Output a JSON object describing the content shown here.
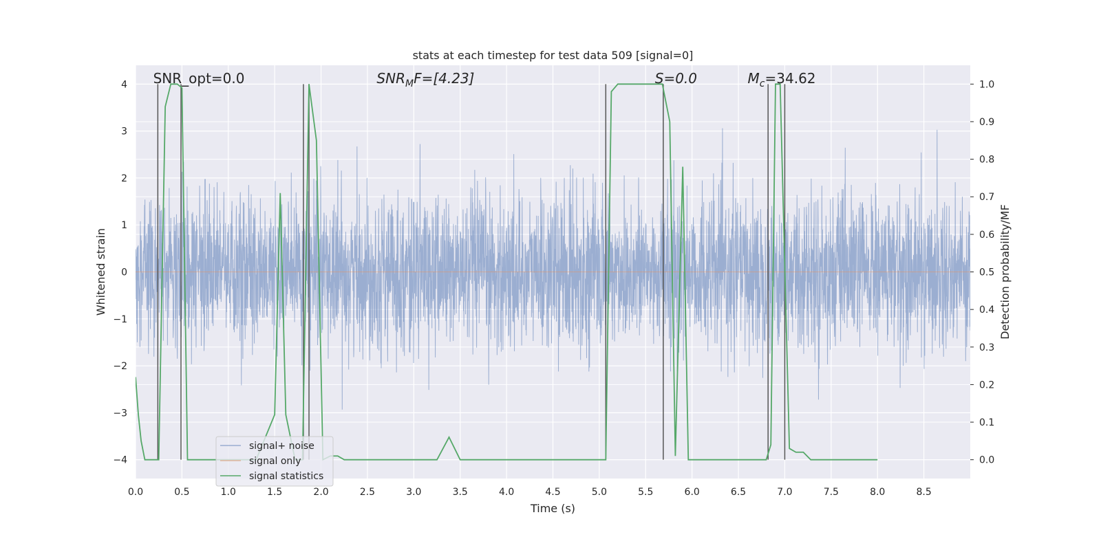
{
  "chart_data": {
    "type": "line",
    "title": "stats at each timestep for test data 509 [signal=0]",
    "xlabel": "Time (s)",
    "ylabel_left": "Whitened strain",
    "ylabel_right": "Detection probability/MF",
    "xlim": [
      0.0,
      9.0
    ],
    "ylim_left": [
      -4.4,
      4.4
    ],
    "ylim_right": [
      -0.05,
      1.05
    ],
    "grid": true,
    "x_ticks": [
      0.0,
      0.5,
      1.0,
      1.5,
      2.0,
      2.5,
      3.0,
      3.5,
      4.0,
      4.5,
      5.0,
      5.5,
      6.0,
      6.5,
      7.0,
      7.5,
      8.0,
      8.5
    ],
    "x_tick_labels": [
      "0.0",
      "0.5",
      "1.0",
      "1.5",
      "2.0",
      "2.5",
      "3.0",
      "3.5",
      "4.0",
      "4.5",
      "5.0",
      "5.5",
      "6.0",
      "6.5",
      "7.0",
      "7.5",
      "8.0",
      "8.5"
    ],
    "y_left_ticks": [
      -4,
      -3,
      -2,
      -1,
      0,
      1,
      2,
      3,
      4
    ],
    "y_left_tick_labels": [
      "−4",
      "−3",
      "−2",
      "−1",
      "0",
      "1",
      "2",
      "3",
      "4"
    ],
    "y_right_ticks": [
      0.0,
      0.1,
      0.2,
      0.3,
      0.4,
      0.5,
      0.6,
      0.7,
      0.8,
      0.9,
      1.0
    ],
    "y_right_tick_labels": [
      "0.0",
      "0.1",
      "0.2",
      "0.3",
      "0.4",
      "0.5",
      "0.6",
      "0.7",
      "0.8",
      "0.9",
      "1.0"
    ],
    "annotations": {
      "snr_opt": "SNR_opt=0.0",
      "snr_mf_base": "SNR",
      "snr_mf_sub": "M",
      "snr_mf_rest": "F=[4.23]",
      "s_label": "S=0.0",
      "mc_base": "M",
      "mc_sub": "c",
      "mc_rest": "=34.62"
    },
    "legend": {
      "location": "lower-left",
      "entries": [
        "signal+ noise",
        "signal only",
        "signal statistics"
      ]
    },
    "vertical_lines_x": [
      0.24,
      0.49,
      1.81,
      1.87,
      5.07,
      5.69,
      6.82,
      7.0
    ],
    "strain_noise": {
      "name": "signal+ noise",
      "color": "#4c72b0",
      "approx_std": 0.8,
      "approx_peak_abs": 3.1,
      "x_range": [
        0.0,
        9.0
      ]
    },
    "signal_only": {
      "name": "signal only",
      "color": "#dd8452",
      "values_constant": 0.0
    },
    "signal_statistics": {
      "name": "signal statistics",
      "color": "#55a868",
      "x": [
        0.0,
        0.03,
        0.06,
        0.1,
        0.24,
        0.25,
        0.32,
        0.38,
        0.45,
        0.5,
        0.56,
        1.3,
        1.5,
        1.56,
        1.62,
        1.72,
        1.8,
        1.87,
        1.95,
        2.02,
        2.1,
        2.18,
        2.25,
        2.5,
        3.25,
        3.38,
        3.5,
        4.0,
        4.05,
        5.07,
        5.13,
        5.2,
        5.68,
        5.76,
        5.82,
        5.9,
        5.96,
        6.02,
        6.3,
        6.8,
        6.85,
        6.9,
        6.95,
        7.05,
        7.12,
        7.2,
        7.28,
        7.5,
        8.0
      ],
      "y": [
        0.22,
        0.12,
        0.05,
        0.0,
        0.0,
        0.0,
        0.94,
        1.0,
        1.0,
        0.99,
        0.0,
        0.0,
        0.12,
        0.71,
        0.12,
        0.0,
        0.0,
        1.0,
        0.85,
        0.0,
        0.01,
        0.01,
        0.0,
        0.0,
        0.0,
        0.06,
        0.0,
        0.0,
        0.0,
        0.0,
        0.98,
        1.0,
        1.0,
        0.9,
        0.01,
        0.78,
        0.0,
        0.0,
        0.0,
        0.0,
        0.04,
        1.0,
        1.0,
        0.03,
        0.02,
        0.02,
        0.0,
        0.0,
        0.0
      ]
    }
  }
}
